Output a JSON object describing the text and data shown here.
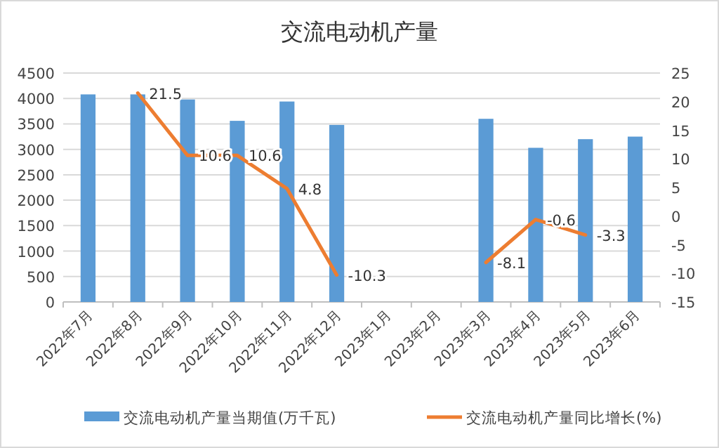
{
  "chart_data": {
    "type": "bar",
    "title": "交流电动机产量",
    "categories": [
      "2022年7月",
      "2022年8月",
      "2022年9月",
      "2022年10月",
      "2022年11月",
      "2022年12月",
      "2023年1月",
      "2023年2月",
      "2023年3月",
      "2023年4月",
      "2023年5月",
      "2023年6月"
    ],
    "series": [
      {
        "name": "交流电动机产量当期值(万千瓦)",
        "color": "#5b9bd5",
        "values": [
          4080,
          4080,
          3980,
          3560,
          3940,
          3480,
          null,
          null,
          3600,
          3030,
          3200,
          3250
        ]
      },
      {
        "name": "交流电动机产量同比增长(%)",
        "type": "line",
        "axis": "y2",
        "color": "#ed7d31",
        "values": [
          null,
          21.5,
          10.6,
          10.6,
          4.8,
          -10.3,
          null,
          null,
          -8.1,
          -0.6,
          -3.3,
          null
        ],
        "value_labels": [
          null,
          "21.5",
          "10.6",
          "10.6",
          "4.8",
          "-10.3",
          null,
          null,
          "-8.1",
          "-0.6",
          "-3.3",
          null
        ]
      }
    ],
    "ylim": [
      0,
      4500
    ],
    "yticks": [
      0,
      500,
      1000,
      1500,
      2000,
      2500,
      3000,
      3500,
      4000,
      4500
    ],
    "y2lim": [
      -15,
      25
    ],
    "y2ticks": [
      -15,
      -10,
      -5,
      0,
      5,
      10,
      15,
      20,
      25
    ],
    "grid": "y",
    "legend": "bottom",
    "marker": "none",
    "line_style": "solid"
  }
}
